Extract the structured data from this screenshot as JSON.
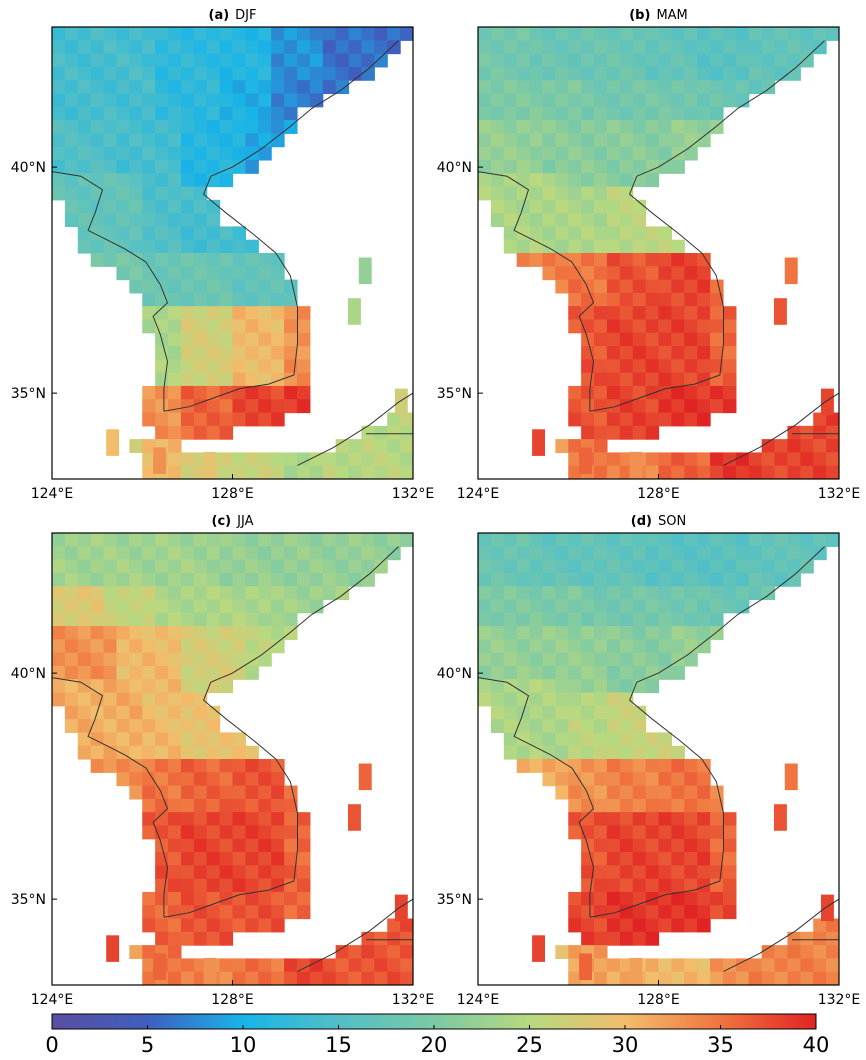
{
  "chart_data": {
    "type": "heatmap",
    "colormap": {
      "name": "spectral-like",
      "range": [
        0,
        40
      ],
      "stops": [
        {
          "value": 0,
          "color": "#5a4ea2"
        },
        {
          "value": 5,
          "color": "#3f5fbe"
        },
        {
          "value": 10,
          "color": "#18b4e8"
        },
        {
          "value": 15,
          "color": "#52bfc6"
        },
        {
          "value": 20,
          "color": "#7cc9a5"
        },
        {
          "value": 25,
          "color": "#b7d980"
        },
        {
          "value": 30,
          "color": "#f2bd6b"
        },
        {
          "value": 35,
          "color": "#f0743f"
        },
        {
          "value": 40,
          "color": "#e02424"
        }
      ],
      "ticks": [
        0,
        5,
        10,
        15,
        20,
        25,
        30,
        35,
        40
      ]
    },
    "lon_ticks": [
      "124°E",
      "128°E",
      "132°E"
    ],
    "lat_ticks": [
      "40°N",
      "35°N"
    ],
    "lon_range": [
      124,
      132
    ],
    "lat_range": [
      33.1,
      43.1
    ],
    "panels": [
      {
        "id": "a",
        "label": "(a)",
        "season": "DJF",
        "lat_rows": [
          42.8,
          41.5,
          40.3,
          39.0,
          37.8,
          36.4,
          35.1,
          33.6
        ],
        "values_by_row": [
          [
            14,
            14,
            12,
            11,
            8,
            6
          ],
          [
            14,
            14,
            12,
            10,
            7,
            6
          ],
          [
            15,
            14,
            11,
            9,
            8
          ],
          [
            17,
            15,
            14,
            13,
            12,
            14
          ],
          [
            19,
            18,
            18,
            17,
            16,
            15
          ],
          [
            22,
            24,
            27,
            30,
            33,
            29
          ],
          [
            31,
            33,
            36,
            38,
            39,
            34
          ],
          [
            28,
            30,
            27,
            26,
            24,
            25
          ]
        ]
      },
      {
        "id": "b",
        "label": "(b)",
        "season": "MAM",
        "lat_rows": [
          42.8,
          41.5,
          40.3,
          39.0,
          37.8,
          36.4,
          35.1,
          33.6
        ],
        "values_by_row": [
          [
            19,
            18,
            18,
            17,
            16,
            17
          ],
          [
            20,
            20,
            19,
            19,
            18,
            17
          ],
          [
            22,
            21,
            21,
            22,
            21
          ],
          [
            24,
            24,
            25,
            25,
            26,
            27
          ],
          [
            34,
            35,
            37,
            38,
            35,
            30
          ],
          [
            35,
            37,
            38,
            38,
            36,
            33
          ],
          [
            36,
            37,
            38,
            39,
            39,
            37
          ],
          [
            33,
            35,
            34,
            36,
            39,
            38
          ]
        ]
      },
      {
        "id": "c",
        "label": "(c)",
        "season": "JJA",
        "lat_rows": [
          42.8,
          41.5,
          40.3,
          39.0,
          37.8,
          36.4,
          35.1,
          33.6
        ],
        "values_by_row": [
          [
            23,
            23,
            23,
            22,
            22,
            22
          ],
          [
            28,
            26,
            24,
            24,
            23,
            23
          ],
          [
            33,
            30,
            27,
            25,
            24
          ],
          [
            31,
            30,
            29,
            29,
            28,
            29
          ],
          [
            33,
            35,
            36,
            37,
            35,
            31
          ],
          [
            36,
            37,
            38,
            38,
            36,
            33
          ],
          [
            35,
            36,
            37,
            37,
            36,
            34
          ],
          [
            33,
            35,
            34,
            35,
            38,
            37
          ]
        ]
      },
      {
        "id": "d",
        "label": "(d)",
        "season": "SON",
        "lat_rows": [
          42.8,
          41.5,
          40.3,
          39.0,
          37.8,
          36.4,
          35.1,
          33.6
        ],
        "values_by_row": [
          [
            18,
            17,
            17,
            16,
            16,
            17
          ],
          [
            20,
            20,
            19,
            19,
            18,
            18
          ],
          [
            22,
            22,
            21,
            22,
            21
          ],
          [
            24,
            25,
            26,
            26,
            27,
            28
          ],
          [
            31,
            33,
            34,
            35,
            33,
            28
          ],
          [
            35,
            37,
            38,
            38,
            36,
            32
          ],
          [
            36,
            38,
            39,
            39,
            38,
            36
          ],
          [
            30,
            32,
            31,
            30,
            33,
            34
          ]
        ]
      }
    ]
  }
}
